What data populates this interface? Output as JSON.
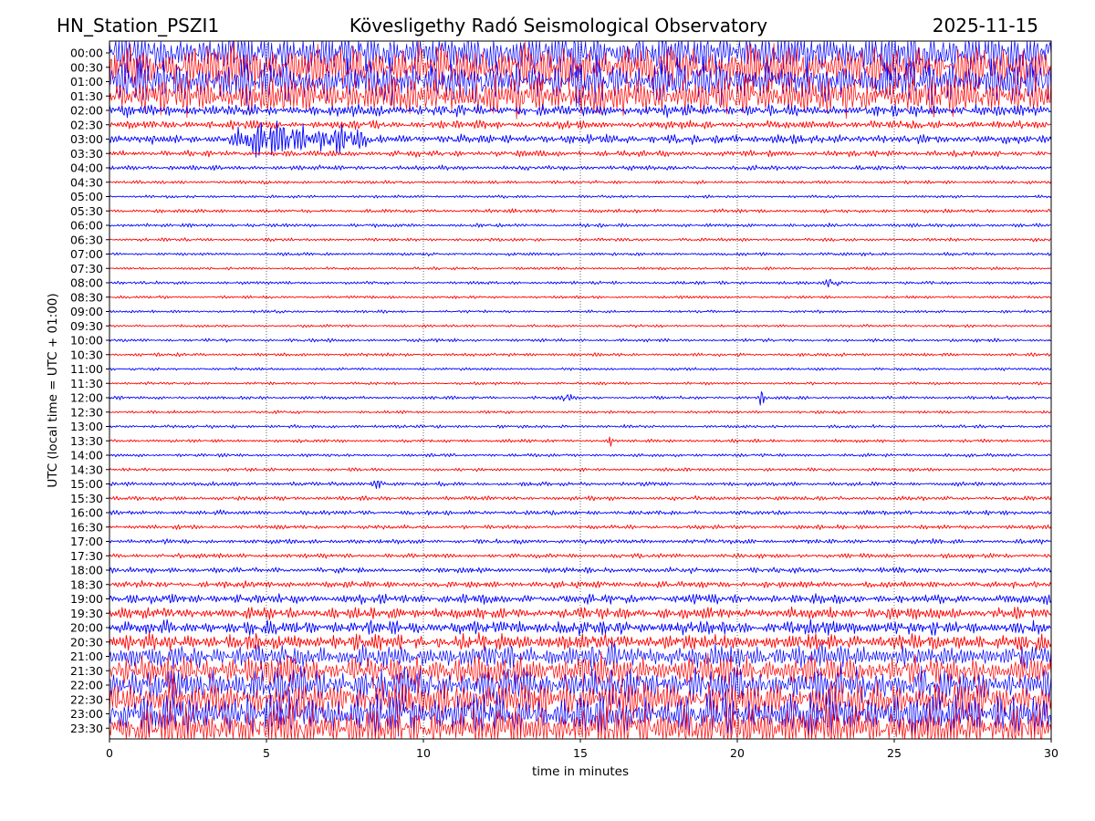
{
  "header": {
    "station": "HN_Station_PSZI1",
    "title": "Kövesligethy Radó Seismological Observatory",
    "date": "2025-11-15"
  },
  "chart_data": {
    "type": "line",
    "chart_kind": "seismogram (dayplot)",
    "xlabel": "time in minutes",
    "ylabel": "UTC (local time = UTC + 01:00)",
    "xlim": [
      0,
      30
    ],
    "x_ticks": [
      0,
      5,
      10,
      15,
      20,
      25,
      30
    ],
    "grid": "vertical dotted at 5-minute intervals",
    "trace_colors": [
      "#0000ff",
      "#ff0000"
    ],
    "rows": [
      "00:00",
      "00:30",
      "01:00",
      "01:30",
      "02:00",
      "02:30",
      "03:00",
      "03:30",
      "04:00",
      "04:30",
      "05:00",
      "05:30",
      "06:00",
      "06:30",
      "07:00",
      "07:30",
      "08:00",
      "08:30",
      "09:00",
      "09:30",
      "10:00",
      "10:30",
      "11:00",
      "11:30",
      "12:00",
      "12:30",
      "13:00",
      "13:30",
      "14:00",
      "14:30",
      "15:00",
      "15:30",
      "16:00",
      "16:30",
      "17:00",
      "17:30",
      "18:00",
      "18:30",
      "19:00",
      "19:30",
      "20:00",
      "20:30",
      "21:00",
      "21:30",
      "22:00",
      "22:30",
      "23:00",
      "23:30"
    ],
    "relative_amplitude": [
      1.0,
      1.0,
      0.95,
      0.85,
      0.25,
      0.18,
      0.2,
      0.13,
      0.1,
      0.07,
      0.06,
      0.08,
      0.08,
      0.07,
      0.07,
      0.06,
      0.07,
      0.06,
      0.06,
      0.06,
      0.07,
      0.07,
      0.06,
      0.06,
      0.07,
      0.06,
      0.07,
      0.07,
      0.07,
      0.07,
      0.09,
      0.09,
      0.1,
      0.09,
      0.1,
      0.1,
      0.12,
      0.14,
      0.2,
      0.25,
      0.3,
      0.35,
      0.5,
      0.65,
      0.75,
      0.85,
      0.9,
      0.95
    ],
    "events": [
      {
        "row": "03:00",
        "start_min": 3.0,
        "end_min": 9.0,
        "amplitude": 0.85
      },
      {
        "row": "08:00",
        "start_min": 22.7,
        "end_min": 23.4,
        "amplitude": 0.35
      },
      {
        "row": "12:00",
        "start_min": 14.3,
        "end_min": 14.8,
        "amplitude": 0.35
      },
      {
        "row": "12:00",
        "start_min": 20.6,
        "end_min": 20.9,
        "amplitude": 0.35
      },
      {
        "row": "13:30",
        "start_min": 15.8,
        "end_min": 16.1,
        "amplitude": 0.3
      },
      {
        "row": "15:00",
        "start_min": 8.2,
        "end_min": 8.9,
        "amplitude": 0.3
      }
    ]
  }
}
